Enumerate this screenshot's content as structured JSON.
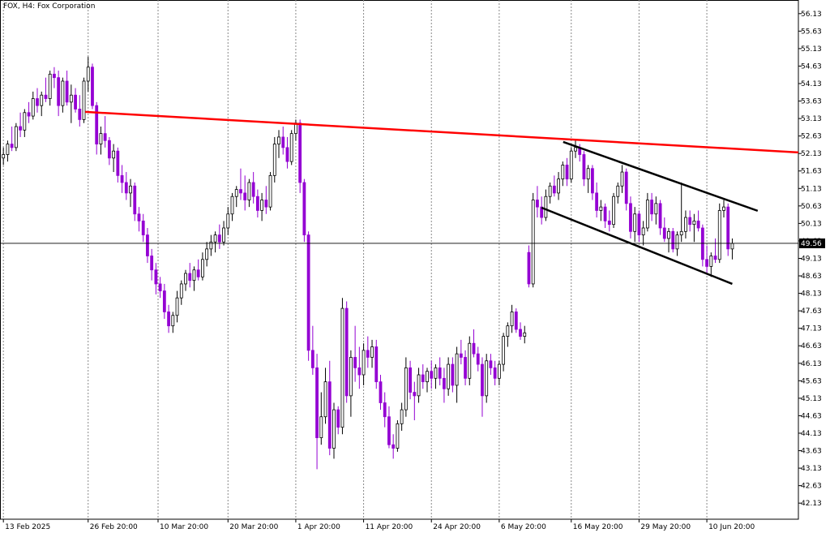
{
  "chart_data": {
    "type": "candlestick",
    "title": "FOX, H4:  Fox Corporation",
    "up_color": "#ffffff",
    "down_color": "#9400d3",
    "edge_color": "#000000",
    "xlim": [
      -0.8,
      187.6
    ],
    "ylim": [
      41.67,
      56.52
    ],
    "yticks": [
      56.13,
      55.63,
      55.13,
      54.63,
      54.13,
      53.63,
      53.13,
      52.63,
      52.13,
      51.63,
      51.13,
      50.63,
      50.13,
      49.63,
      49.13,
      48.63,
      48.13,
      47.63,
      47.13,
      46.63,
      46.13,
      45.63,
      45.13,
      44.63,
      44.13,
      43.63,
      43.13,
      42.63,
      42.13
    ],
    "xticks": [
      {
        "value": 0,
        "label": "13 Feb 2025"
      },
      {
        "value": 20,
        "label": "26 Feb 20:00"
      },
      {
        "value": 36.5,
        "label": "10 Mar 20:00"
      },
      {
        "value": 53,
        "label": "20 Mar 20:00"
      },
      {
        "value": 69,
        "label": "1 Apr 20:00"
      },
      {
        "value": 85,
        "label": "11 Apr 20:00"
      },
      {
        "value": 101,
        "label": "24 Apr 20:00"
      },
      {
        "value": 117,
        "label": "6 May 20:00"
      },
      {
        "value": 134,
        "label": "16 May 20:00"
      },
      {
        "value": 150,
        "label": "29 May 20:00"
      },
      {
        "value": 166,
        "label": "10 Jun 20:00"
      }
    ],
    "current_price": 49.56,
    "lines": [
      {
        "color": "#ff0000",
        "x": [
          19.3,
          195
        ],
        "y": [
          53.32,
          52.11
        ]
      },
      {
        "color": "#000000",
        "x": [
          132.1,
          178
        ],
        "y": [
          52.46,
          50.49
        ]
      },
      {
        "color": "#000000",
        "x": [
          127,
          172
        ],
        "y": [
          50.58,
          48.4
        ]
      }
    ],
    "ohlc": [
      [
        52.0,
        52.3,
        51.8,
        52.1
      ],
      [
        52.1,
        52.5,
        51.9,
        52.4
      ],
      [
        52.4,
        52.9,
        52.2,
        52.3
      ],
      [
        52.3,
        53.0,
        52.2,
        52.9
      ],
      [
        52.9,
        53.3,
        52.6,
        52.8
      ],
      [
        52.8,
        53.4,
        52.6,
        53.3
      ],
      [
        53.3,
        53.6,
        53.0,
        53.2
      ],
      [
        53.2,
        53.9,
        53.1,
        53.7
      ],
      [
        53.7,
        54.0,
        53.3,
        53.5
      ],
      [
        53.5,
        53.9,
        53.2,
        53.8
      ],
      [
        53.8,
        54.3,
        53.6,
        53.7
      ],
      [
        53.7,
        54.5,
        53.5,
        54.4
      ],
      [
        54.4,
        54.6,
        54.0,
        54.3
      ],
      [
        54.3,
        54.5,
        53.2,
        53.5
      ],
      [
        53.5,
        54.3,
        53.3,
        54.2
      ],
      [
        54.2,
        54.5,
        53.5,
        53.6
      ],
      [
        53.6,
        54.1,
        53.0,
        53.8
      ],
      [
        53.8,
        54.0,
        53.3,
        53.4
      ],
      [
        53.4,
        53.8,
        52.9,
        53.1
      ],
      [
        53.1,
        54.3,
        53.0,
        54.2
      ],
      [
        54.2,
        54.9,
        53.9,
        54.6
      ],
      [
        54.6,
        54.7,
        53.4,
        53.5
      ],
      [
        53.5,
        53.6,
        52.1,
        52.4
      ],
      [
        52.4,
        52.9,
        52.1,
        52.7
      ],
      [
        52.7,
        53.2,
        52.3,
        52.5
      ],
      [
        52.5,
        52.6,
        51.8,
        52.0
      ],
      [
        52.0,
        52.4,
        51.6,
        52.2
      ],
      [
        52.2,
        52.3,
        51.3,
        51.5
      ],
      [
        51.5,
        51.8,
        51.0,
        51.3
      ],
      [
        51.3,
        51.6,
        50.8,
        51.0
      ],
      [
        51.0,
        51.4,
        50.6,
        51.2
      ],
      [
        51.2,
        51.3,
        50.2,
        50.4
      ],
      [
        50.4,
        50.6,
        49.9,
        50.2
      ],
      [
        50.2,
        50.4,
        49.6,
        49.8
      ],
      [
        49.8,
        50.0,
        49.0,
        49.2
      ],
      [
        49.2,
        49.4,
        48.5,
        48.8
      ],
      [
        48.8,
        49.0,
        48.1,
        48.4
      ],
      [
        48.4,
        48.6,
        48.0,
        48.2
      ],
      [
        48.2,
        48.4,
        47.4,
        47.6
      ],
      [
        47.6,
        47.8,
        47.0,
        47.2
      ],
      [
        47.2,
        47.6,
        47.0,
        47.5
      ],
      [
        47.5,
        48.2,
        47.3,
        48.0
      ],
      [
        48.0,
        48.5,
        47.8,
        48.4
      ],
      [
        48.4,
        48.8,
        48.2,
        48.7
      ],
      [
        48.7,
        49.0,
        48.3,
        48.5
      ],
      [
        48.5,
        48.9,
        48.2,
        48.8
      ],
      [
        48.8,
        49.1,
        48.5,
        48.6
      ],
      [
        48.6,
        49.3,
        48.5,
        49.1
      ],
      [
        49.1,
        49.6,
        48.9,
        49.4
      ],
      [
        49.4,
        49.8,
        49.2,
        49.6
      ],
      [
        49.6,
        49.9,
        49.3,
        49.8
      ],
      [
        49.8,
        50.1,
        49.4,
        49.6
      ],
      [
        49.6,
        50.2,
        49.5,
        50.0
      ],
      [
        50.0,
        50.6,
        49.8,
        50.4
      ],
      [
        50.4,
        51.0,
        50.2,
        50.9
      ],
      [
        50.9,
        51.2,
        50.6,
        51.1
      ],
      [
        51.1,
        51.7,
        50.8,
        51.0
      ],
      [
        51.0,
        51.5,
        50.5,
        50.8
      ],
      [
        50.8,
        51.4,
        50.6,
        51.3
      ],
      [
        51.3,
        51.6,
        50.7,
        50.9
      ],
      [
        50.9,
        51.1,
        50.3,
        50.5
      ],
      [
        50.5,
        51.0,
        50.2,
        50.8
      ],
      [
        50.8,
        51.2,
        50.4,
        50.6
      ],
      [
        50.6,
        51.6,
        50.5,
        51.5
      ],
      [
        51.5,
        52.6,
        51.3,
        52.4
      ],
      [
        52.4,
        52.8,
        52.0,
        52.6
      ],
      [
        52.6,
        52.9,
        52.1,
        52.3
      ],
      [
        52.3,
        52.6,
        51.7,
        51.9
      ],
      [
        51.9,
        52.8,
        51.8,
        52.7
      ],
      [
        52.7,
        53.1,
        52.5,
        53.0
      ],
      [
        53.0,
        53.1,
        51.0,
        51.3
      ],
      [
        51.3,
        51.4,
        49.6,
        49.8
      ],
      [
        49.8,
        49.9,
        46.2,
        46.5
      ],
      [
        46.5,
        47.2,
        45.8,
        46.0
      ],
      [
        46.0,
        46.4,
        43.1,
        44.0
      ],
      [
        44.0,
        45.3,
        43.8,
        44.6
      ],
      [
        44.6,
        46.0,
        44.4,
        45.6
      ],
      [
        45.6,
        46.2,
        43.5,
        43.7
      ],
      [
        43.7,
        45.0,
        43.4,
        44.8
      ],
      [
        44.8,
        44.9,
        44.1,
        44.3
      ],
      [
        44.3,
        48.0,
        44.1,
        47.7
      ],
      [
        47.7,
        47.9,
        45.0,
        45.2
      ],
      [
        45.2,
        46.5,
        44.6,
        46.3
      ],
      [
        46.3,
        47.2,
        45.6,
        46.0
      ],
      [
        46.0,
        46.6,
        45.4,
        45.8
      ],
      [
        45.8,
        46.7,
        45.5,
        46.5
      ],
      [
        46.5,
        46.9,
        46.0,
        46.3
      ],
      [
        46.3,
        46.8,
        46.0,
        46.6
      ],
      [
        46.6,
        46.8,
        45.4,
        45.6
      ],
      [
        45.6,
        45.8,
        44.8,
        45.0
      ],
      [
        45.0,
        45.3,
        44.3,
        44.6
      ],
      [
        44.6,
        44.9,
        43.7,
        43.8
      ],
      [
        43.8,
        44.1,
        43.4,
        43.7
      ],
      [
        43.7,
        44.5,
        43.6,
        44.4
      ],
      [
        44.4,
        45.0,
        44.2,
        44.8
      ],
      [
        44.8,
        46.3,
        44.6,
        46.0
      ],
      [
        46.0,
        46.2,
        45.1,
        45.3
      ],
      [
        45.3,
        45.6,
        44.5,
        45.2
      ],
      [
        45.2,
        46.0,
        45.0,
        45.8
      ],
      [
        45.8,
        46.1,
        45.4,
        45.6
      ],
      [
        45.6,
        46.0,
        45.3,
        45.9
      ],
      [
        45.9,
        46.2,
        45.4,
        45.7
      ],
      [
        45.7,
        46.1,
        45.4,
        46.0
      ],
      [
        46.0,
        46.3,
        45.5,
        45.7
      ],
      [
        45.7,
        46.0,
        45.0,
        45.4
      ],
      [
        45.4,
        46.3,
        45.2,
        46.1
      ],
      [
        46.1,
        46.3,
        45.3,
        45.5
      ],
      [
        45.5,
        46.6,
        45.0,
        46.4
      ],
      [
        46.4,
        46.8,
        46.1,
        46.3
      ],
      [
        46.3,
        46.5,
        45.5,
        45.7
      ],
      [
        45.7,
        46.9,
        45.5,
        46.7
      ],
      [
        46.7,
        47.1,
        46.3,
        46.4
      ],
      [
        46.4,
        46.6,
        45.9,
        46.1
      ],
      [
        46.1,
        46.3,
        44.6,
        45.2
      ],
      [
        45.2,
        46.4,
        45.0,
        46.2
      ],
      [
        46.2,
        46.4,
        45.8,
        46.0
      ],
      [
        46.0,
        46.2,
        45.5,
        45.7
      ],
      [
        45.7,
        46.2,
        45.5,
        46.1
      ],
      [
        46.1,
        47.0,
        45.9,
        46.9
      ],
      [
        46.9,
        47.3,
        46.6,
        47.2
      ],
      [
        47.2,
        47.8,
        47.0,
        47.6
      ],
      [
        47.6,
        47.7,
        47.0,
        47.1
      ],
      [
        47.1,
        47.3,
        46.8,
        46.9
      ],
      [
        46.9,
        47.2,
        46.7,
        47.0
      ],
      [
        49.3,
        49.5,
        48.3,
        48.4
      ],
      [
        48.4,
        51.0,
        48.3,
        50.8
      ],
      [
        50.8,
        51.2,
        50.3,
        50.6
      ],
      [
        50.6,
        50.9,
        50.1,
        50.3
      ],
      [
        50.3,
        51.1,
        50.2,
        50.9
      ],
      [
        50.9,
        51.3,
        50.7,
        51.2
      ],
      [
        51.2,
        51.5,
        50.9,
        51.0
      ],
      [
        51.0,
        51.6,
        50.8,
        51.4
      ],
      [
        51.4,
        51.9,
        51.2,
        51.8
      ],
      [
        51.8,
        52.0,
        51.2,
        51.4
      ],
      [
        51.4,
        52.3,
        51.3,
        52.2
      ],
      [
        52.2,
        52.5,
        52.0,
        52.3
      ],
      [
        52.3,
        52.4,
        51.9,
        52.1
      ],
      [
        52.1,
        52.2,
        51.2,
        51.4
      ],
      [
        51.4,
        51.8,
        51.0,
        51.7
      ],
      [
        51.7,
        51.8,
        50.8,
        51.0
      ],
      [
        51.0,
        51.3,
        50.3,
        50.5
      ],
      [
        50.5,
        50.8,
        50.2,
        50.6
      ],
      [
        50.6,
        50.7,
        50.0,
        50.2
      ],
      [
        50.2,
        50.5,
        49.9,
        50.1
      ],
      [
        50.1,
        51.0,
        50.0,
        50.9
      ],
      [
        50.9,
        51.3,
        50.7,
        51.2
      ],
      [
        51.2,
        51.8,
        51.0,
        51.6
      ],
      [
        51.6,
        51.7,
        50.5,
        50.7
      ],
      [
        50.7,
        50.9,
        49.7,
        49.9
      ],
      [
        49.9,
        50.6,
        49.6,
        50.4
      ],
      [
        50.4,
        50.5,
        49.6,
        49.8
      ],
      [
        49.8,
        50.2,
        49.5,
        50.0
      ],
      [
        50.0,
        51.0,
        49.9,
        50.8
      ],
      [
        50.8,
        51.0,
        50.2,
        50.4
      ],
      [
        50.4,
        50.9,
        50.1,
        50.7
      ],
      [
        50.7,
        50.8,
        49.8,
        50.0
      ],
      [
        50.0,
        50.3,
        49.6,
        49.7
      ],
      [
        49.7,
        50.0,
        49.3,
        49.9
      ],
      [
        49.9,
        50.0,
        49.3,
        49.4
      ],
      [
        49.4,
        49.9,
        49.2,
        49.8
      ],
      [
        49.8,
        51.3,
        49.6,
        49.9
      ],
      [
        49.9,
        50.5,
        49.7,
        50.3
      ],
      [
        50.3,
        50.5,
        49.9,
        50.1
      ],
      [
        50.1,
        50.4,
        49.6,
        50.2
      ],
      [
        50.2,
        50.5,
        49.9,
        50.0
      ],
      [
        50.0,
        50.1,
        48.9,
        49.1
      ],
      [
        49.1,
        49.5,
        48.7,
        48.9
      ],
      [
        48.9,
        49.3,
        48.6,
        49.2
      ],
      [
        49.2,
        49.7,
        49.0,
        49.1
      ],
      [
        49.1,
        50.7,
        49.0,
        50.5
      ],
      [
        50.5,
        50.8,
        50.3,
        50.6
      ],
      [
        50.6,
        50.7,
        49.2,
        49.4
      ],
      [
        49.4,
        49.7,
        49.1,
        49.56
      ]
    ]
  }
}
